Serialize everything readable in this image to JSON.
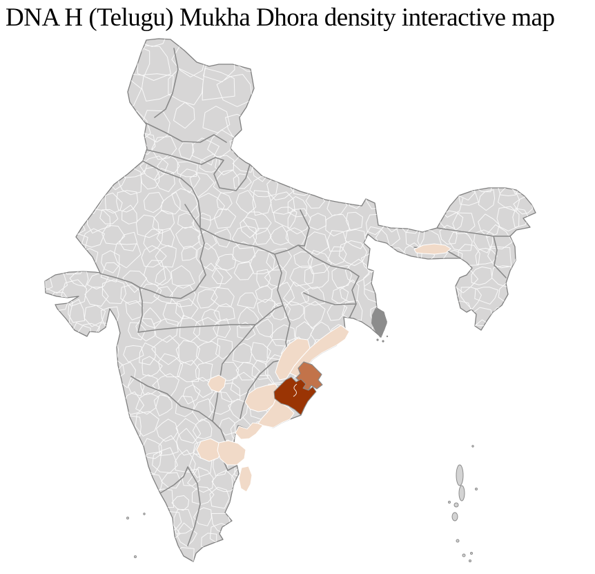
{
  "title": "DNA H (Telugu) Mukha Dhora density interactive map",
  "map": {
    "label": "india-district-density-choropleth",
    "background": "#ffffff",
    "land_fill": "#d7d6d6",
    "district_border": "#ffffff",
    "state_border": "#898989",
    "coast_border": "#7f7f7f",
    "island_fill": "#d3d3d3",
    "delta_fill": "#8c8c8c",
    "density_scale": {
      "high": "#9a3404",
      "medium": "#c2734a",
      "low": "#f1dac8"
    },
    "regions": [
      {
        "id": "district-high-1",
        "level": "high",
        "color": "#9a3404"
      },
      {
        "id": "district-mid-1",
        "level": "medium",
        "color": "#c2734a"
      },
      {
        "id": "district-low-1",
        "level": "low",
        "color": "#f1dac8"
      },
      {
        "id": "district-low-2",
        "level": "low",
        "color": "#f1dac8"
      },
      {
        "id": "district-low-3",
        "level": "low",
        "color": "#f1dac8"
      },
      {
        "id": "district-low-4",
        "level": "low",
        "color": "#f1dac8"
      },
      {
        "id": "district-low-5",
        "level": "low",
        "color": "#f1dac8"
      },
      {
        "id": "district-low-6",
        "level": "low",
        "color": "#f1dac8"
      },
      {
        "id": "district-low-7",
        "level": "low",
        "color": "#f1dac8"
      },
      {
        "id": "district-low-8",
        "level": "low",
        "color": "#f1dac8"
      },
      {
        "id": "district-low-9",
        "level": "low",
        "color": "#f1dac8"
      },
      {
        "id": "district-low-10",
        "level": "low",
        "color": "#f1dac8"
      },
      {
        "id": "delta-marsh-area",
        "level": "none",
        "color": "#8c8c8c"
      }
    ]
  }
}
